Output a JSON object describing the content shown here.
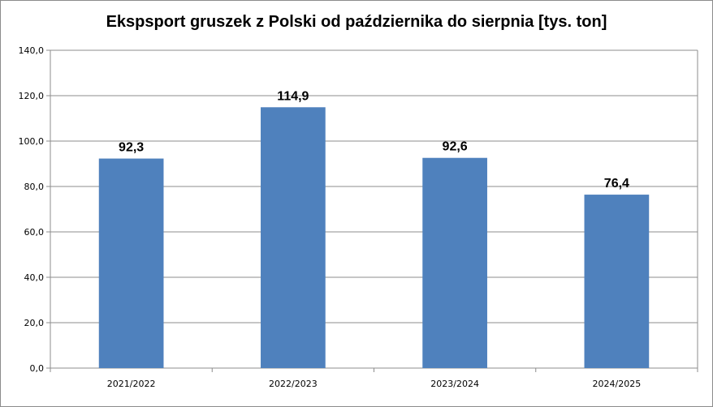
{
  "chart_data": {
    "type": "bar",
    "title": "Ekspsport gruszek z Polski od października do sierpnia [tys. ton]",
    "categories": [
      "2021/2022",
      "2022/2023",
      "2023/2024",
      "2024/2025"
    ],
    "values": [
      92.3,
      114.9,
      92.6,
      76.4
    ],
    "data_labels": [
      "92,3",
      "114,9",
      "92,6",
      "76,4"
    ],
    "y_ticks": [
      "0,0",
      "20,0",
      "40,0",
      "60,0",
      "80,0",
      "100,0",
      "120,0",
      "140,0"
    ],
    "ylim": [
      0,
      140
    ],
    "grid": true,
    "legend": "none",
    "bar_color": "#4f81bd"
  }
}
